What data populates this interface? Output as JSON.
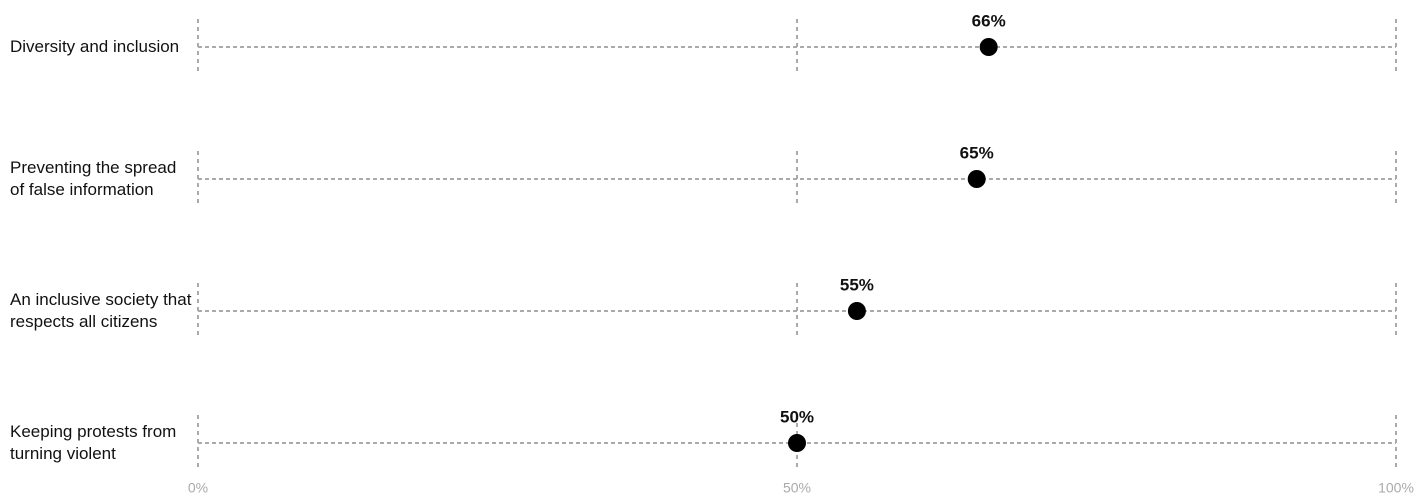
{
  "chart_data": {
    "type": "dot",
    "categories": [
      "Diversity and inclusion",
      "Preventing the spread of false information",
      "An inclusive society that respects all citizens",
      "Keeping protests from turning violent"
    ],
    "values": [
      66,
      65,
      55,
      50
    ],
    "value_labels": [
      "66%",
      "65%",
      "55%",
      "50%"
    ],
    "color": "#000000",
    "xlim": [
      0,
      100
    ],
    "xticks": [
      {
        "value": 0,
        "label": "0%"
      },
      {
        "value": 50,
        "label": "50%"
      },
      {
        "value": 100,
        "label": "100%"
      }
    ],
    "grid": true
  }
}
